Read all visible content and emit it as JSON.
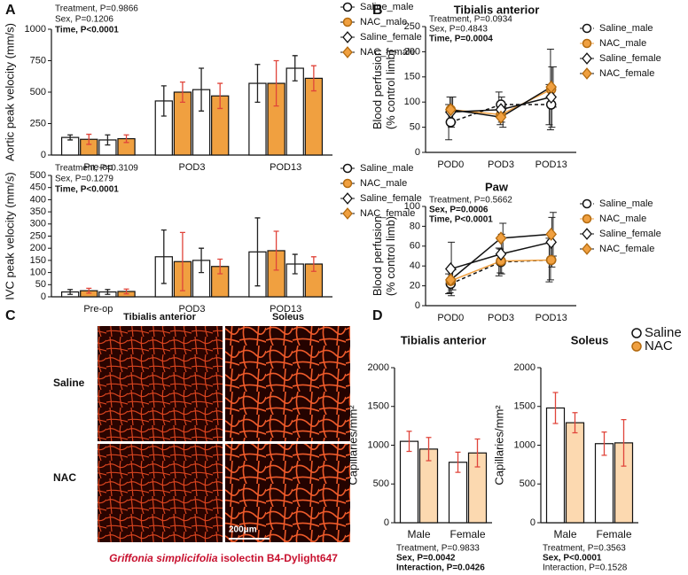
{
  "panel_labels": [
    "A",
    "B",
    "C",
    "D"
  ],
  "panel_c": {
    "columns": [
      "Tibialis anterior",
      "Soleus"
    ],
    "rows": [
      "Saline",
      "NAC"
    ],
    "scale_bar": "200μm",
    "caption": [
      "Griffonia simplicifolia",
      " isolectin B4-Dylight647"
    ]
  },
  "chart_data": [
    {
      "type": "bar",
      "ylabel": [
        "Aortic peak velocity (mm/s)"
      ],
      "categories": [
        "Pre-op",
        "POD3",
        "POD13"
      ],
      "stats": [
        {
          "text": "Treatment, P=0.9866",
          "bold": false
        },
        {
          "text": "Sex, P=0.1206",
          "bold": false
        },
        {
          "text": "Time, P<0.0001",
          "bold": true
        }
      ],
      "series": [
        {
          "name": "Saline_male",
          "color": "#ffffff",
          "marker": "circle",
          "marker_fill": "#ffffff",
          "error_color": "#222222",
          "values": [
            140,
            430,
            570
          ],
          "errors": [
            20,
            120,
            150
          ]
        },
        {
          "name": "NAC_male",
          "color": "#f0a040",
          "marker": "circle",
          "marker_fill": "#f0a040",
          "error_color": "#e0443a",
          "values": [
            125,
            500,
            570
          ],
          "errors": [
            40,
            80,
            180
          ]
        },
        {
          "name": "Saline_female",
          "color": "#ffffff",
          "marker": "diamond",
          "marker_fill": "#ffffff",
          "error_color": "#222222",
          "values": [
            120,
            520,
            690
          ],
          "errors": [
            40,
            170,
            100
          ]
        },
        {
          "name": "NAC_female",
          "color": "#f0a040",
          "marker": "diamond",
          "marker_fill": "#f0a040",
          "error_color": "#e0443a",
          "values": [
            130,
            470,
            610
          ],
          "errors": [
            30,
            100,
            100
          ]
        }
      ],
      "ylim": [
        0,
        1000
      ],
      "yticks": [
        0,
        250,
        500,
        750,
        1000
      ]
    },
    {
      "type": "bar",
      "ylabel": [
        "IVC peak velocity (mm/s)"
      ],
      "categories": [
        "Pre-op",
        "POD3",
        "POD13"
      ],
      "stats": [
        {
          "text": "Treatment, P=0.3109",
          "bold": false
        },
        {
          "text": "Sex, P=0.1279",
          "bold": false
        },
        {
          "text": "Time, P<0.0001",
          "bold": true
        }
      ],
      "series": [
        {
          "name": "Saline_male",
          "color": "#ffffff",
          "marker": "circle",
          "marker_fill": "#ffffff",
          "error_color": "#222222",
          "values": [
            20,
            165,
            185
          ],
          "errors": [
            10,
            110,
            140
          ]
        },
        {
          "name": "NAC_male",
          "color": "#f0a040",
          "marker": "circle",
          "marker_fill": "#f0a040",
          "error_color": "#e0443a",
          "values": [
            25,
            145,
            190
          ],
          "errors": [
            10,
            120,
            80
          ]
        },
        {
          "name": "Saline_female",
          "color": "#ffffff",
          "marker": "diamond",
          "marker_fill": "#ffffff",
          "error_color": "#222222",
          "values": [
            20,
            150,
            135
          ],
          "errors": [
            10,
            50,
            40
          ]
        },
        {
          "name": "NAC_female",
          "color": "#f0a040",
          "marker": "diamond",
          "marker_fill": "#f0a040",
          "error_color": "#e0443a",
          "values": [
            22,
            125,
            135
          ],
          "errors": [
            10,
            30,
            30
          ]
        }
      ],
      "ylim": [
        0,
        500
      ],
      "yticks": [
        0,
        50,
        100,
        150,
        200,
        250,
        300,
        350,
        400,
        450,
        500
      ]
    },
    {
      "type": "line",
      "title": "Tibialis anterior",
      "ylabel": [
        "Blood perfusion",
        "(% control limb)"
      ],
      "categories": [
        "POD0",
        "POD3",
        "POD13"
      ],
      "stats": [
        {
          "text": "Treatment, P=0.0934",
          "bold": false
        },
        {
          "text": "Sex, P=0.4843",
          "bold": false
        },
        {
          "text": "Time, P=0.0004",
          "bold": true
        }
      ],
      "series": [
        {
          "name": "Saline_male",
          "color": "#111111",
          "dashed": true,
          "marker": "circle",
          "marker_fill": "#ffffff",
          "values": [
            60,
            95,
            95
          ],
          "errors": [
            35,
            25,
            40
          ]
        },
        {
          "name": "NAC_male",
          "color": "#f0a040",
          "dashed": false,
          "marker": "circle",
          "marker_fill": "#f0a040",
          "values": [
            85,
            75,
            125
          ],
          "errors": [
            25,
            20,
            80
          ]
        },
        {
          "name": "Saline_female",
          "color": "#111111",
          "dashed": false,
          "marker": "diamond",
          "marker_fill": "#ffffff",
          "values": [
            80,
            85,
            110
          ],
          "errors": [
            30,
            25,
            60
          ]
        },
        {
          "name": "NAC_female",
          "color": "#111111",
          "dashed": false,
          "marker": "diamond",
          "marker_fill": "#f0a040",
          "values": [
            85,
            70,
            130
          ],
          "errors": [
            25,
            20,
            40
          ]
        }
      ],
      "ylim": [
        0,
        250
      ],
      "yticks": [
        0,
        50,
        100,
        150,
        200,
        250
      ]
    },
    {
      "type": "line",
      "title": "Paw",
      "ylabel": [
        "Blood perfusion",
        "(% control limb)"
      ],
      "categories": [
        "POD0",
        "POD3",
        "POD13"
      ],
      "stats": [
        {
          "text": "Treatment, P=0.5662",
          "bold": false
        },
        {
          "text": "Sex, P=0.0006",
          "bold": true
        },
        {
          "text": "Time, P<0.0001",
          "bold": true
        }
      ],
      "series": [
        {
          "name": "Saline_male",
          "color": "#111111",
          "dashed": true,
          "marker": "circle",
          "marker_fill": "#ffffff",
          "values": [
            22,
            44,
            46
          ],
          "errors": [
            10,
            14,
            22
          ]
        },
        {
          "name": "NAC_male",
          "color": "#f0a040",
          "dashed": false,
          "marker": "circle",
          "marker_fill": "#f0a040",
          "values": [
            25,
            45,
            46
          ],
          "errors": [
            12,
            12,
            20
          ]
        },
        {
          "name": "Saline_female",
          "color": "#111111",
          "dashed": false,
          "marker": "diamond",
          "marker_fill": "#ffffff",
          "values": [
            37,
            52,
            64
          ],
          "errors": [
            27,
            20,
            25
          ]
        },
        {
          "name": "NAC_female",
          "color": "#111111",
          "dashed": false,
          "marker": "diamond",
          "marker_fill": "#f0a040",
          "values": [
            26,
            68,
            72
          ],
          "errors": [
            10,
            15,
            22
          ]
        }
      ],
      "ylim": [
        0,
        100
      ],
      "yticks": [
        0,
        20,
        40,
        60,
        80,
        100
      ]
    },
    {
      "type": "bar",
      "title": "Tibialis anterior",
      "ylabel": [
        "Capillaries/mm²"
      ],
      "categories": [
        "Male",
        "Female"
      ],
      "stats": [
        {
          "text": "Treatment, P=0.9833",
          "bold": false
        },
        {
          "text": "Sex, P=0.0042",
          "bold": true
        },
        {
          "text": "Interaction, P=0.0426",
          "bold": true
        }
      ],
      "series": [
        {
          "name": "Saline",
          "color": "#ffffff",
          "marker": "circle",
          "marker_fill": "#ffffff",
          "error_color": "#e0443a",
          "values": [
            1050,
            780
          ],
          "errors": [
            130,
            130
          ]
        },
        {
          "name": "NAC",
          "color": "#fcd9b0",
          "marker": "circle",
          "marker_fill": "#f0a040",
          "error_color": "#e0443a",
          "values": [
            950,
            900
          ],
          "errors": [
            150,
            180
          ]
        }
      ],
      "ylim": [
        0,
        2000
      ],
      "yticks": [
        0,
        500,
        1000,
        1500,
        2000
      ]
    },
    {
      "type": "bar",
      "title": "Soleus",
      "ylabel": [
        "Capillaries/mm²"
      ],
      "categories": [
        "Male",
        "Female"
      ],
      "stats": [
        {
          "text": "Treatment, P=0.3563",
          "bold": false
        },
        {
          "text": "Sex, P<0.0001",
          "bold": true
        },
        {
          "text": "Interaction, P=0.1528",
          "bold": false
        }
      ],
      "series": [
        {
          "name": "Saline",
          "color": "#ffffff",
          "marker": "circle",
          "marker_fill": "#ffffff",
          "error_color": "#e0443a",
          "values": [
            1480,
            1020
          ],
          "errors": [
            200,
            150
          ]
        },
        {
          "name": "NAC",
          "color": "#fcd9b0",
          "marker": "circle",
          "marker_fill": "#f0a040",
          "error_color": "#e0443a",
          "values": [
            1290,
            1030
          ],
          "errors": [
            130,
            300
          ]
        }
      ],
      "ylim": [
        0,
        2000
      ],
      "yticks": [
        0,
        500,
        1000,
        1500,
        2000
      ],
      "legend": true
    }
  ]
}
